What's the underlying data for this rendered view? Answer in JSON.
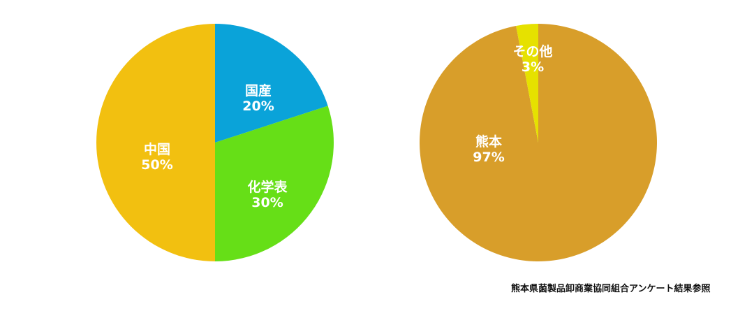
{
  "chart_data": [
    {
      "type": "pie",
      "slices": [
        {
          "label": "国産",
          "value": 20,
          "value_label": "20%",
          "color": "#0aa3d9"
        },
        {
          "label": "化学表",
          "value": 30,
          "value_label": "30%",
          "color": "#66df17"
        },
        {
          "label": "中国",
          "value": 50,
          "value_label": "50%",
          "color": "#f2c010"
        }
      ],
      "start": "top",
      "direction": "clockwise"
    },
    {
      "type": "pie",
      "slices": [
        {
          "label": "熊本",
          "value": 97,
          "value_label": "97%",
          "color": "#d89e2a"
        },
        {
          "label": "その他",
          "value": 3,
          "value_label": "3%",
          "color": "#e6e100"
        }
      ],
      "start": "top",
      "direction": "clockwise"
    }
  ],
  "source_note": "熊本県菌製品卸商業協同組合アンケート結果参照"
}
